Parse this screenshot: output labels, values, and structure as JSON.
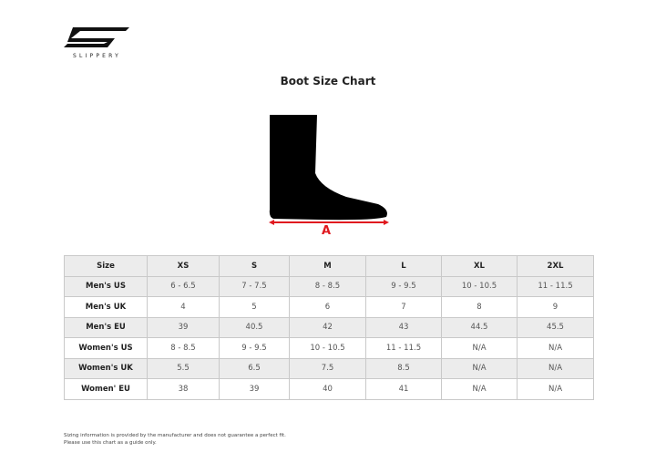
{
  "brand": {
    "name": "SLIPPERY"
  },
  "title": "Boot Size Chart",
  "diagram": {
    "measure_label": "A",
    "arrow_color": "#e0191f"
  },
  "table": {
    "headers": [
      "Size",
      "XS",
      "S",
      "M",
      "L",
      "XL",
      "2XL"
    ],
    "rows": [
      [
        "Men's US",
        "6 - 6.5",
        "7 - 7.5",
        "8 - 8.5",
        "9 - 9.5",
        "10 - 10.5",
        "11 - 11.5"
      ],
      [
        "Men's UK",
        "4",
        "5",
        "6",
        "7",
        "8",
        "9"
      ],
      [
        "Men's EU",
        "39",
        "40.5",
        "42",
        "43",
        "44.5",
        "45.5"
      ],
      [
        "Women's US",
        "8 - 8.5",
        "9 - 9.5",
        "10 - 10.5",
        "11 - 11.5",
        "N/A",
        "N/A"
      ],
      [
        "Women's UK",
        "5.5",
        "6.5",
        "7.5",
        "8.5",
        "N/A",
        "N/A"
      ],
      [
        "Women' EU",
        "38",
        "39",
        "40",
        "41",
        "N/A",
        "N/A"
      ]
    ]
  },
  "note": {
    "line1": "Sizing information is provided by the manufacturer and does not guarantee a perfect fit.",
    "line2": "Please use this chart as a guide only."
  }
}
